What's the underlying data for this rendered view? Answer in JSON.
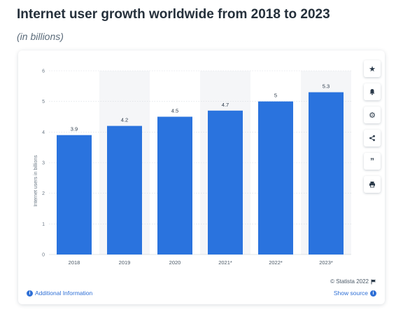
{
  "header": {
    "title": "Internet user growth worldwide from 2018 to 2023",
    "subtitle": "(in billions)"
  },
  "footer": {
    "credit": "© Statista 2022",
    "additional_info": "Additional Information",
    "show_source": "Show source"
  },
  "toolbar": {
    "icons": [
      "star-icon",
      "bell-icon",
      "gear-icon",
      "share-icon",
      "quote-icon",
      "print-icon"
    ]
  },
  "colors": {
    "bar": "#2a73de",
    "band": "#f5f6f8",
    "grid": "#d7dce2",
    "link": "#2e6fd6"
  },
  "chart_data": {
    "type": "bar",
    "categories": [
      "2018",
      "2019",
      "2020",
      "2021*",
      "2022*",
      "2023*"
    ],
    "values": [
      3.9,
      4.2,
      4.5,
      4.7,
      5,
      5.3
    ],
    "value_labels": [
      "3.9",
      "4.2",
      "4.5",
      "4.7",
      "5",
      "5.3"
    ],
    "ylabel": "Internet users in billions",
    "ylim": [
      0,
      6
    ],
    "yticks": [
      "0",
      "1",
      "2",
      "3",
      "4",
      "5",
      "6"
    ],
    "grid": true,
    "legend": "none"
  }
}
